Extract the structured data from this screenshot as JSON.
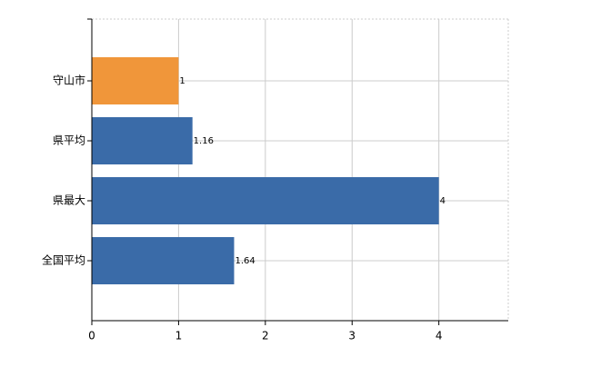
{
  "chart_data": {
    "type": "hbar",
    "categories": [
      "守山市",
      "県平均",
      "県最大",
      "全国平均"
    ],
    "values": [
      1,
      1.16,
      4,
      1.64
    ],
    "colors": [
      "#f0963a",
      "#3a6ba8",
      "#3a6ba8",
      "#3a6ba8"
    ],
    "xlim": [
      0,
      4.8
    ],
    "xticks": [
      0,
      1,
      2,
      3,
      4
    ],
    "grid": true
  }
}
